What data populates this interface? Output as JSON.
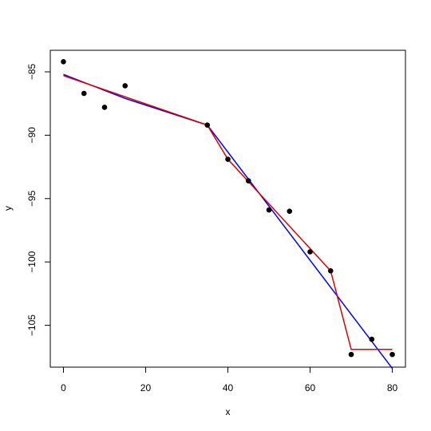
{
  "chart_data": {
    "type": "scatter",
    "title": "",
    "xlabel": "x",
    "ylabel": "y",
    "xlim": [
      -3.2,
      83.2
    ],
    "ylim": [
      -108.3,
      -83.3
    ],
    "x_ticks": [
      0,
      20,
      40,
      60,
      80
    ],
    "y_ticks": [
      -85,
      -90,
      -95,
      -100,
      -105
    ],
    "grid": false,
    "legend": "none",
    "points": {
      "x": [
        0,
        5,
        10,
        15,
        35,
        40,
        45,
        50,
        55,
        60,
        65,
        70,
        75,
        80
      ],
      "y": [
        -84.2,
        -86.7,
        -87.8,
        -86.1,
        -89.2,
        -91.9,
        -93.6,
        -95.9,
        -96.0,
        -99.2,
        -100.7,
        -107.3,
        -106.1,
        -107.3
      ]
    },
    "series": [
      {
        "color": "#0000ff",
        "x": [
          0,
          15,
          35,
          80
        ],
        "y": [
          -85.2,
          -87.1,
          -89.2,
          -108.4
        ]
      },
      {
        "color": "#dd0000",
        "x": [
          0,
          35,
          40,
          65,
          70,
          80
        ],
        "y": [
          -85.3,
          -89.2,
          -91.9,
          -100.7,
          -106.9,
          -106.9
        ]
      }
    ]
  }
}
